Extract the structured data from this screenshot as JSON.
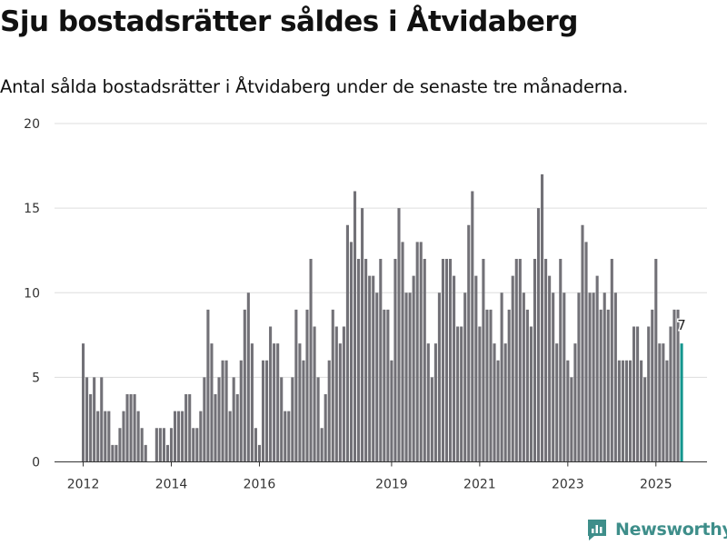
{
  "title": "Sju bostadsrätter såldes i Åtvidaberg",
  "subtitle": "Antal sålda bostadsrätter i Åtvidaberg under de senaste tre månaderna.",
  "brand": {
    "name": "Newsworthy",
    "color": "#3e8e8a"
  },
  "colors": {
    "bar": "#727177",
    "highlight": "#14958e",
    "grid": "#dddddd"
  },
  "chart_data": {
    "type": "bar",
    "title": "Sju bostadsrätter såldes i Åtvidaberg",
    "subtitle": "Antal sålda bostadsrätter i Åtvidaberg under de senaste tre månaderna.",
    "xlabel": "",
    "ylabel": "",
    "ylim": [
      0,
      20
    ],
    "yticks": [
      0,
      5,
      10,
      15,
      20
    ],
    "x_tick_labels": [
      {
        "label": "2012",
        "month": 0
      },
      {
        "label": "2014",
        "month": 24
      },
      {
        "label": "2016",
        "month": 48
      },
      {
        "label": "2019",
        "month": 84
      },
      {
        "label": "2021",
        "month": 108
      },
      {
        "label": "2023",
        "month": 132
      },
      {
        "label": "2025",
        "month": 156
      }
    ],
    "start": "2012-01",
    "grid": true,
    "legend": "none",
    "highlight_label": "7",
    "series": [
      {
        "values": [
          7,
          5,
          4,
          5,
          3,
          5,
          3,
          3,
          1,
          1,
          2,
          3,
          4,
          4,
          4,
          3,
          2,
          1,
          0,
          0,
          2,
          2,
          2,
          1,
          2,
          3,
          3,
          3,
          4,
          4,
          2,
          2,
          3,
          5,
          9,
          7,
          4,
          5,
          6,
          6,
          3,
          5,
          4,
          6,
          9,
          10,
          7,
          2,
          1,
          6,
          6,
          8,
          7,
          7,
          5,
          3,
          3,
          5,
          9,
          7,
          6,
          9,
          12,
          8,
          5,
          2,
          4,
          6,
          9,
          8,
          7,
          8,
          14,
          13,
          16,
          12,
          15,
          12,
          11,
          11,
          10,
          12,
          9,
          9,
          6,
          12,
          15,
          13,
          10,
          10,
          11,
          13,
          13,
          12,
          7,
          5,
          7,
          10,
          12,
          12,
          12,
          11,
          8,
          8,
          10,
          14,
          16,
          11,
          8,
          12,
          9,
          9,
          7,
          6,
          10,
          7,
          9,
          11,
          12,
          12,
          10,
          9,
          8,
          12,
          15,
          17,
          12,
          11,
          10,
          7,
          12,
          10,
          6,
          5,
          7,
          10,
          14,
          13,
          10,
          10,
          11,
          9,
          10,
          9,
          12,
          10,
          6,
          6,
          6,
          6,
          8,
          8,
          6,
          5,
          8,
          9,
          12,
          7,
          7,
          6,
          8,
          9,
          9,
          7
        ]
      }
    ]
  }
}
